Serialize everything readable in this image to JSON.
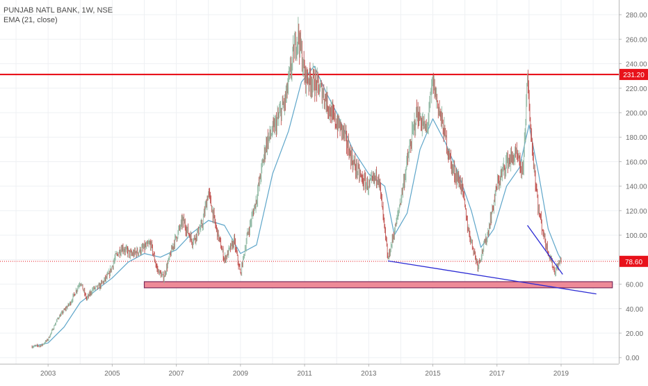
{
  "header": {
    "symbol_line": "PUNJAB NATL BANK, 1W, NSE",
    "indicator_line": "EMA (21, close)"
  },
  "colors": {
    "background": "#ffffff",
    "grid": "#eef0f3",
    "axis": "#6b6b6b",
    "candle_up": "#8fb8a2",
    "candle_down": "#c0504d",
    "ema": "#5da5c9",
    "resistance": "#e8121b",
    "support_box_fill": "#ee8a97",
    "support_box_border": "#7a2a5a",
    "trendline": "#2b2bd4",
    "last_price": "#e8121b"
  },
  "chart_data": {
    "type": "line",
    "title": "PUNJAB NATL BANK, 1W, NSE",
    "xlabel": "",
    "ylabel": "",
    "xlim": [
      2001.5,
      2020.8
    ],
    "ylim": [
      -5,
      292
    ],
    "x_ticks": [
      2003,
      2005,
      2007,
      2009,
      2011,
      2013,
      2015,
      2017,
      2019
    ],
    "x_tick_labels": [
      "2003",
      "2005",
      "2007",
      "2009",
      "2011",
      "2013",
      "2015",
      "2017",
      "2019"
    ],
    "y_ticks": [
      0,
      20,
      40,
      60,
      80,
      100,
      120,
      140,
      160,
      180,
      200,
      220,
      240,
      260,
      280
    ],
    "y_tick_labels": [
      "0.00",
      "20.00",
      "40.00",
      "60.00",
      "80.00",
      "100.00",
      "120.00",
      "140.00",
      "160.00",
      "180.00",
      "200.00",
      "220.00",
      "240.00",
      "260.00",
      "280.00"
    ],
    "grid": true,
    "series": [
      {
        "name": "PUNJAB NATL BANK",
        "style": "weekly-candles",
        "x": [
          2002.5,
          2002.8,
          2003.0,
          2003.3,
          2003.7,
          2004.0,
          2004.2,
          2004.4,
          2004.6,
          2004.9,
          2005.1,
          2005.3,
          2005.6,
          2005.9,
          2006.2,
          2006.4,
          2006.6,
          2006.9,
          2007.2,
          2007.5,
          2007.8,
          2008.0,
          2008.2,
          2008.5,
          2008.8,
          2009.0,
          2009.2,
          2009.5,
          2009.8,
          2010.1,
          2010.4,
          2010.7,
          2010.8,
          2011.0,
          2011.3,
          2011.6,
          2011.9,
          2012.2,
          2012.5,
          2012.8,
          2013.0,
          2013.3,
          2013.6,
          2013.9,
          2014.2,
          2014.5,
          2014.8,
          2015.0,
          2015.3,
          2015.6,
          2015.9,
          2016.1,
          2016.4,
          2016.7,
          2017.0,
          2017.3,
          2017.6,
          2017.8,
          2017.95,
          2018.1,
          2018.3,
          2018.5,
          2018.8,
          2019.0
        ],
        "values": [
          9,
          10,
          15,
          32,
          45,
          62,
          48,
          56,
          58,
          68,
          82,
          90,
          84,
          88,
          93,
          72,
          65,
          92,
          112,
          95,
          108,
          135,
          110,
          80,
          95,
          68,
          98,
          130,
          175,
          190,
          210,
          255,
          265,
          230,
          225,
          215,
          195,
          185,
          160,
          145,
          140,
          150,
          80,
          115,
          160,
          200,
          185,
          225,
          190,
          155,
          140,
          105,
          75,
          100,
          140,
          160,
          165,
          150,
          225,
          170,
          120,
          95,
          70,
          80
        ]
      },
      {
        "name": "EMA (21, close)",
        "x": [
          2002.5,
          2003.0,
          2003.5,
          2004.0,
          2004.5,
          2005.0,
          2005.5,
          2006.0,
          2006.5,
          2007.0,
          2007.5,
          2008.0,
          2008.5,
          2009.0,
          2009.5,
          2010.0,
          2010.5,
          2010.9,
          2011.3,
          2011.7,
          2012.0,
          2012.5,
          2013.0,
          2013.5,
          2013.8,
          2014.2,
          2014.6,
          2015.0,
          2015.4,
          2015.8,
          2016.2,
          2016.5,
          2016.9,
          2017.3,
          2017.7,
          2018.0,
          2018.3,
          2018.6,
          2018.9,
          2019.0
        ],
        "values": [
          9,
          12,
          25,
          45,
          55,
          65,
          78,
          85,
          82,
          88,
          102,
          112,
          108,
          85,
          92,
          150,
          185,
          225,
          238,
          215,
          200,
          170,
          150,
          140,
          100,
          118,
          170,
          195,
          175,
          150,
          120,
          90,
          105,
          140,
          155,
          190,
          150,
          105,
          85,
          80
        ]
      }
    ],
    "annotations": {
      "resistance_level": {
        "value": 231.2,
        "label": "231.20"
      },
      "last_price": {
        "value": 78.6,
        "label": "78.60"
      },
      "support_zone": {
        "x_start": 2006.0,
        "x_end": 2020.6,
        "y_low": 57,
        "y_high": 62
      },
      "trendline_lower": {
        "x": [
          2013.6,
          2020.1
        ],
        "y": [
          79,
          52
        ]
      },
      "trendline_down": {
        "x": [
          2017.95,
          2019.05
        ],
        "y": [
          108,
          68
        ]
      }
    }
  }
}
